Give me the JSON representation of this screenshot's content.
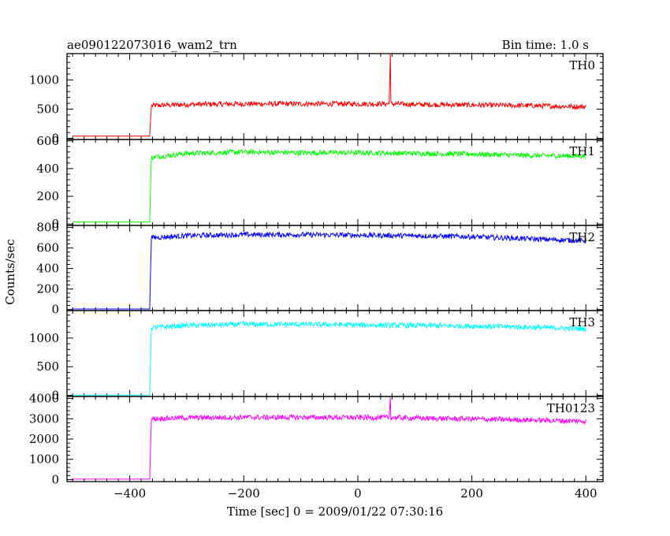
{
  "title": "ae090122073016_wam2_trn",
  "bin_time_label": "Bin time: 1.0 s",
  "y_axis_label": "Counts/sec",
  "x_axis_label": "Time [sec] 0 = 2009/01/22 07:30:16",
  "chart_data": {
    "type": "line",
    "xlabel": "Time [sec] 0 = 2009/01/22 07:30:16",
    "ylabel": "Counts/sec",
    "xlim": [
      -510,
      430
    ],
    "x_ticks": [
      -400,
      -200,
      0,
      200,
      400
    ],
    "grid": false,
    "panels": [
      {
        "name": "TH0",
        "color": "#ff0000",
        "ylim": [
          -20,
          1450
        ],
        "y_ticks": [
          0,
          500,
          1000
        ],
        "x": [
          -500,
          -365,
          -362,
          -300,
          -200,
          -100,
          0,
          55,
          57,
          58,
          62,
          100,
          200,
          300,
          400
        ],
        "y": [
          40,
          40,
          560,
          580,
          590,
          590,
          590,
          590,
          1450,
          590,
          590,
          580,
          570,
          560,
          540
        ]
      },
      {
        "name": "TH1",
        "color": "#00ff00",
        "ylim": [
          -10,
          610
        ],
        "y_ticks": [
          0,
          200,
          400,
          600
        ],
        "x": [
          -500,
          -365,
          -362,
          -300,
          -200,
          -100,
          0,
          100,
          200,
          300,
          400
        ],
        "y": [
          15,
          15,
          480,
          510,
          520,
          515,
          515,
          510,
          505,
          495,
          490
        ]
      },
      {
        "name": "TH2",
        "color": "#0000ff",
        "ylim": [
          -10,
          820
        ],
        "y_ticks": [
          0,
          200,
          400,
          600,
          800
        ],
        "x": [
          -500,
          -365,
          -362,
          -300,
          -200,
          -100,
          0,
          100,
          200,
          300,
          400
        ],
        "y": [
          5,
          5,
          700,
          720,
          730,
          730,
          725,
          720,
          710,
          690,
          670
        ]
      },
      {
        "name": "TH3",
        "color": "#00ffff",
        "ylim": [
          -20,
          1480
        ],
        "y_ticks": [
          0,
          500,
          1000
        ],
        "x": [
          -500,
          -365,
          -362,
          -300,
          -200,
          -100,
          0,
          100,
          200,
          300,
          400
        ],
        "y": [
          5,
          5,
          1180,
          1220,
          1240,
          1240,
          1230,
          1220,
          1210,
          1190,
          1160
        ]
      },
      {
        "name": "TH0123",
        "color": "#ff00ff",
        "ylim": [
          -100,
          4100
        ],
        "y_ticks": [
          0,
          1000,
          2000,
          3000,
          4000
        ],
        "x": [
          -500,
          -365,
          -362,
          -300,
          -200,
          -100,
          0,
          55,
          57,
          58,
          62,
          100,
          200,
          300,
          400
        ],
        "y": [
          20,
          20,
          3000,
          3050,
          3070,
          3070,
          3060,
          3060,
          4100,
          3060,
          3060,
          3030,
          2990,
          2940,
          2880
        ]
      }
    ]
  }
}
